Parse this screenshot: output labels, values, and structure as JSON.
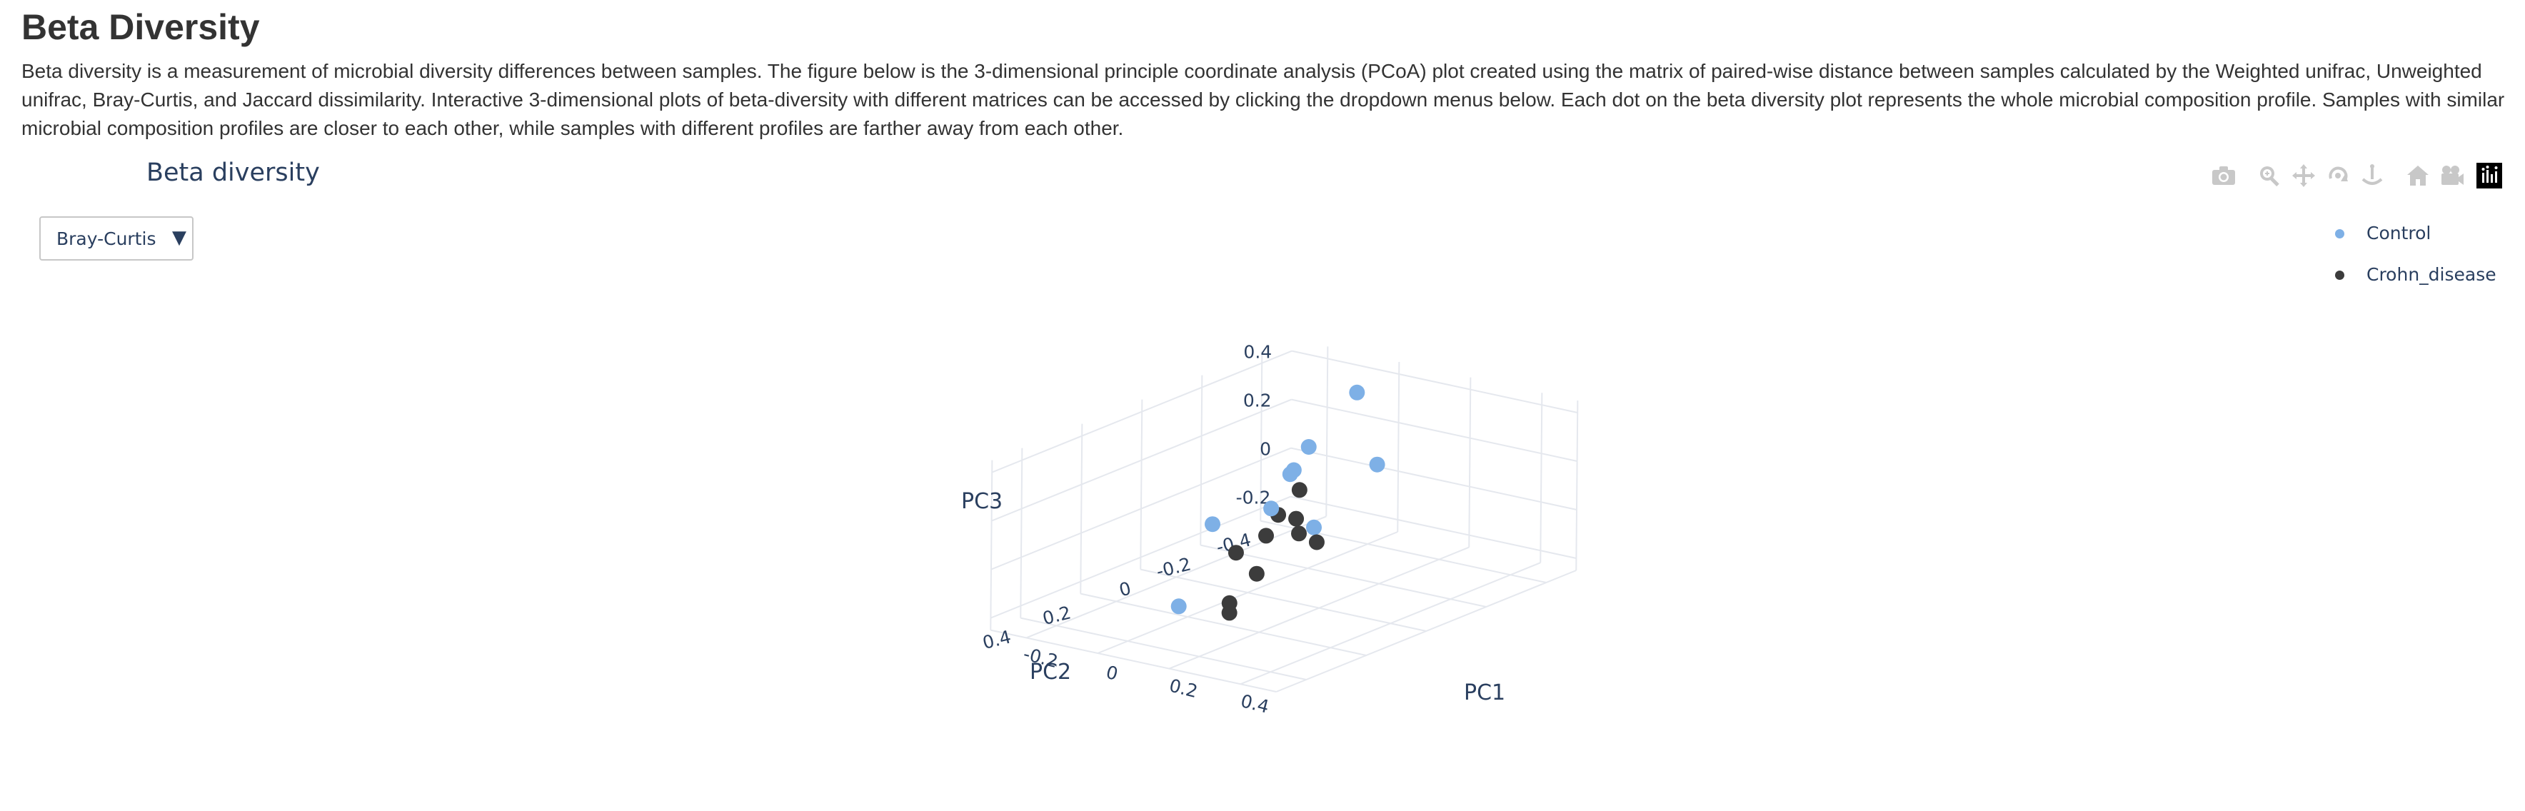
{
  "page": {
    "title": "Beta Diversity",
    "description": "Beta diversity is a measurement of microbial diversity differences between samples. The figure below is the 3-dimensional principle coordinate analysis (PCoA) plot created using the matrix of paired-wise distance between samples calculated by the Weighted unifrac, Unweighted unifrac, Bray-Curtis, and Jaccard dissimilarity. Interactive 3-dimensional plots of beta-diversity with different matrices can be accessed by clicking the dropdown menus below. Each dot on the beta diversity plot represents the whole microbial composition profile. Samples with similar microbial composition profiles are closer to each other, while samples with different profiles are farther away from each other."
  },
  "controls": {
    "metric_dropdown": {
      "selected": "Bray-Curtis",
      "arrow": "▼"
    }
  },
  "modebar": {
    "icons": [
      "camera-icon",
      "zoom-icon",
      "pan-icon",
      "orbit-rotation-icon",
      "turntable-rotation-icon",
      "home-icon",
      "camera-view-icon",
      "plotly-logo-icon"
    ]
  },
  "colors": {
    "Control": "#7eb0e6",
    "Crohn_disease": "#3c3c3c",
    "grid": "#e5e8ee",
    "text": "#2a3f5f"
  },
  "chart_data": {
    "type": "scatter",
    "title": "Beta diversity",
    "xlabel": "PC1",
    "ylabel": "PC2",
    "zlabel": "PC3",
    "x_ticks": [
      "-0.2",
      "0",
      "0.2",
      "0.4"
    ],
    "y_ticks": [
      "-0.4",
      "-0.2",
      "0",
      "0.2",
      "0.4"
    ],
    "z_ticks": [
      "-0.2",
      "0",
      "0.2",
      "0.4"
    ],
    "xlim": [
      -0.3,
      0.5
    ],
    "ylim": [
      -0.5,
      0.5
    ],
    "zlim": [
      -0.25,
      0.45
    ],
    "grid": true,
    "legend_position": "top-right",
    "series": [
      {
        "name": "Control",
        "color": "#7eb0e6",
        "points": [
          {
            "x": 0.05,
            "y": -0.3,
            "z": 0.44
          },
          {
            "x": 0.0,
            "y": -0.2,
            "z": 0.25
          },
          {
            "x": 0.15,
            "y": -0.25,
            "z": 0.2
          },
          {
            "x": -0.02,
            "y": -0.1,
            "z": 0.04
          },
          {
            "x": 0.1,
            "y": -0.1,
            "z": 0.0
          },
          {
            "x": -0.1,
            "y": 0.0,
            "z": 0.0
          },
          {
            "x": -0.25,
            "y": -0.45,
            "z": -0.05
          },
          {
            "x": -0.26,
            "y": -0.45,
            "z": -0.07
          },
          {
            "x": 0.1,
            "y": 0.35,
            "z": -0.1
          }
        ]
      },
      {
        "name": "Crohn_disease",
        "color": "#3c3c3c",
        "points": [
          {
            "x": 0.0,
            "y": -0.1,
            "z": 0.02
          },
          {
            "x": 0.05,
            "y": -0.1,
            "z": 0.02
          },
          {
            "x": 0.05,
            "y": 0.0,
            "z": 0.0
          },
          {
            "x": 0.1,
            "y": -0.05,
            "z": 0.0
          },
          {
            "x": 0.15,
            "y": -0.05,
            "z": -0.02
          },
          {
            "x": 0.05,
            "y": 0.1,
            "z": -0.02
          },
          {
            "x": 0.15,
            "y": 0.15,
            "z": -0.05
          },
          {
            "x": -0.15,
            "y": -0.35,
            "z": -0.05
          },
          {
            "x": 0.2,
            "y": 0.3,
            "z": -0.08
          },
          {
            "x": 0.2,
            "y": 0.3,
            "z": -0.12
          }
        ]
      }
    ]
  }
}
